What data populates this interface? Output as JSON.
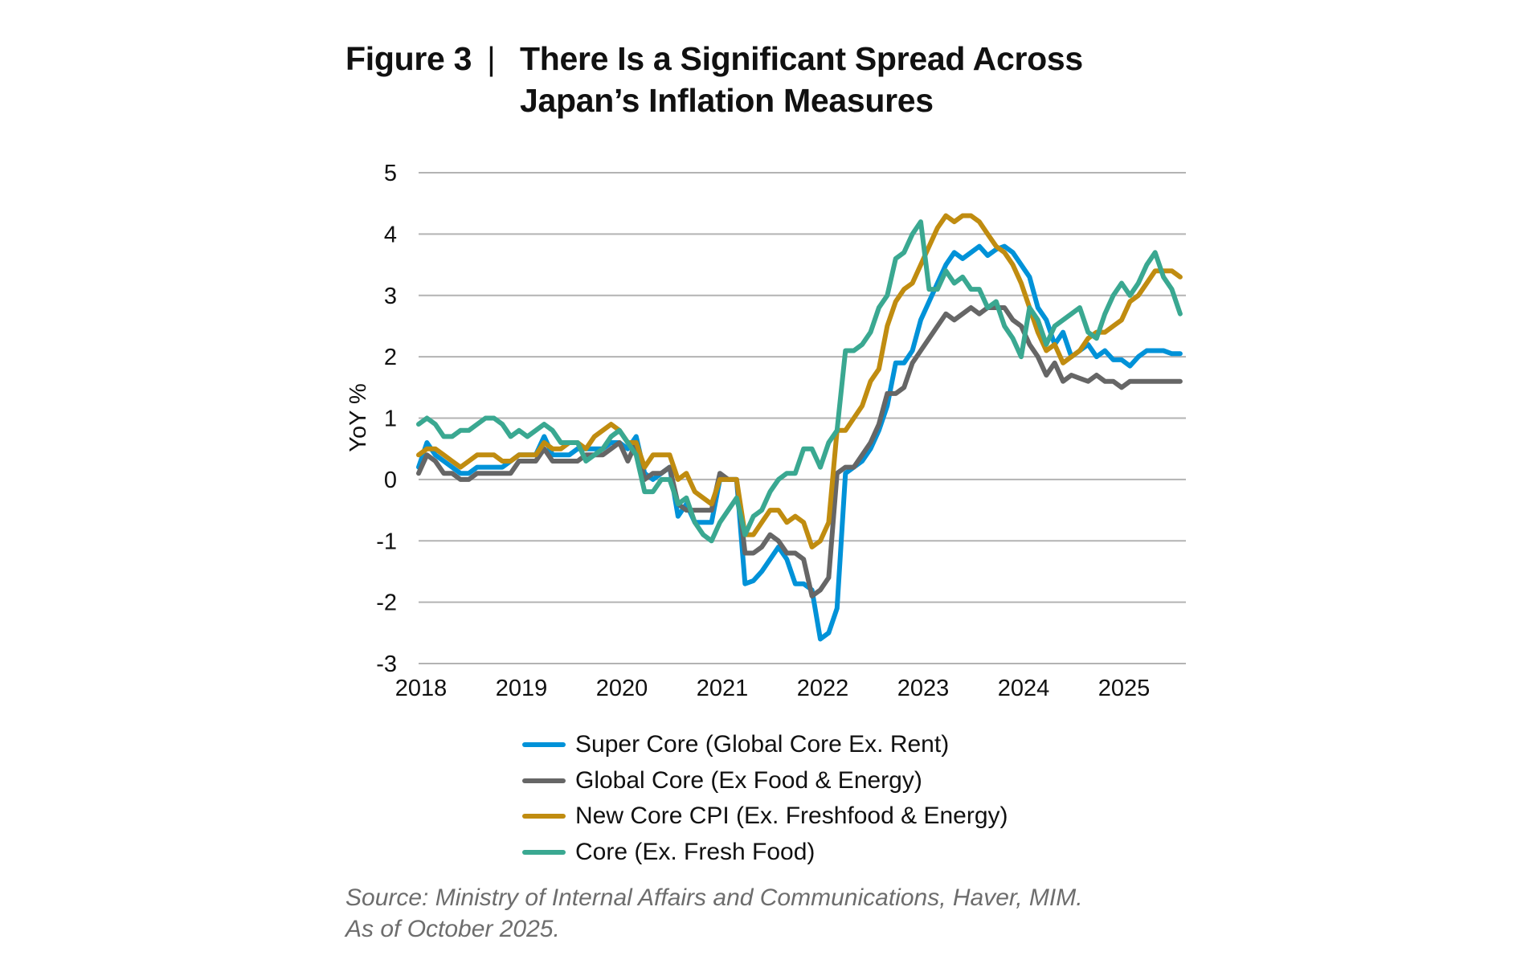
{
  "title": {
    "figure_label": "Figure 3",
    "separator": "|",
    "line1": "There Is a Significant Spread Across",
    "line2": "Japan’s Inflation Measures"
  },
  "chart_data": {
    "type": "line",
    "title": "There Is a Significant Spread Across Japan’s Inflation Measures",
    "xlabel": "",
    "ylabel": "YoY %",
    "x_start": "2018-01",
    "x_frequency": "monthly",
    "x_tick_labels": [
      "2018",
      "2019",
      "2020",
      "2021",
      "2022",
      "2023",
      "2024",
      "2025"
    ],
    "ylim": [
      -3,
      5
    ],
    "y_ticks": [
      -3,
      -2,
      -1,
      0,
      1,
      2,
      3,
      4,
      5
    ],
    "y_tick_labels": [
      "-3",
      "-2",
      "-1",
      "0",
      "1",
      "2",
      "3",
      "4",
      "5"
    ],
    "grid": "horizontal",
    "legend_position": "bottom",
    "series": [
      {
        "name": "Super Core (Global Core Ex. Rent)",
        "color": "#0092d8",
        "values": [
          0.2,
          0.6,
          0.4,
          0.3,
          0.2,
          0.1,
          0.1,
          0.2,
          0.2,
          0.2,
          0.2,
          0.3,
          0.4,
          0.4,
          0.4,
          0.7,
          0.4,
          0.4,
          0.4,
          0.5,
          0.5,
          0.5,
          0.5,
          0.6,
          0.6,
          0.5,
          0.7,
          0.1,
          0.0,
          0.1,
          0.2,
          -0.6,
          -0.4,
          -0.7,
          -0.7,
          -0.7,
          0.0,
          0.0,
          0.0,
          -1.7,
          -1.65,
          -1.5,
          -1.3,
          -1.1,
          -1.3,
          -1.7,
          -1.7,
          -1.8,
          -2.6,
          -2.5,
          -2.1,
          0.1,
          0.2,
          0.3,
          0.5,
          0.8,
          1.2,
          1.9,
          1.9,
          2.1,
          2.6,
          2.9,
          3.2,
          3.5,
          3.7,
          3.6,
          3.7,
          3.8,
          3.65,
          3.75,
          3.8,
          3.7,
          3.5,
          3.3,
          2.8,
          2.6,
          2.2,
          2.4,
          2.0,
          2.1,
          2.2,
          2.0,
          2.1,
          1.95,
          1.95,
          1.85,
          2.0,
          2.1,
          2.1,
          2.1,
          2.05,
          2.05
        ]
      },
      {
        "name": "Global Core (Ex Food & Energy)",
        "color": "#666666",
        "values": [
          0.1,
          0.4,
          0.3,
          0.1,
          0.1,
          0.0,
          0.0,
          0.1,
          0.1,
          0.1,
          0.1,
          0.1,
          0.3,
          0.3,
          0.3,
          0.5,
          0.3,
          0.3,
          0.3,
          0.3,
          0.4,
          0.4,
          0.4,
          0.5,
          0.6,
          0.3,
          0.6,
          0.0,
          0.1,
          0.1,
          0.2,
          -0.4,
          -0.5,
          -0.5,
          -0.5,
          -0.5,
          0.1,
          0.0,
          0.0,
          -1.2,
          -1.2,
          -1.1,
          -0.9,
          -1.0,
          -1.2,
          -1.2,
          -1.3,
          -1.9,
          -1.8,
          -1.6,
          0.1,
          0.2,
          0.2,
          0.4,
          0.6,
          0.9,
          1.4,
          1.4,
          1.5,
          1.9,
          2.1,
          2.3,
          2.5,
          2.7,
          2.6,
          2.7,
          2.8,
          2.7,
          2.8,
          2.8,
          2.8,
          2.6,
          2.5,
          2.2,
          2.0,
          1.7,
          1.9,
          1.6,
          1.7,
          1.65,
          1.6,
          1.7,
          1.6,
          1.6,
          1.5,
          1.6,
          1.6,
          1.6,
          1.6,
          1.6,
          1.6,
          1.6
        ]
      },
      {
        "name": "New Core CPI (Ex. Freshfood & Energy)",
        "color": "#c08c10",
        "values": [
          0.4,
          0.5,
          0.5,
          0.4,
          0.3,
          0.2,
          0.3,
          0.4,
          0.4,
          0.4,
          0.3,
          0.3,
          0.4,
          0.4,
          0.4,
          0.6,
          0.5,
          0.5,
          0.6,
          0.6,
          0.5,
          0.7,
          0.8,
          0.9,
          0.8,
          0.6,
          0.6,
          0.2,
          0.4,
          0.4,
          0.4,
          0.0,
          0.1,
          -0.2,
          -0.3,
          -0.4,
          0.0,
          0.0,
          0.0,
          -0.9,
          -0.9,
          -0.7,
          -0.5,
          -0.5,
          -0.7,
          -0.6,
          -0.7,
          -1.1,
          -1.0,
          -0.7,
          0.8,
          0.8,
          1.0,
          1.2,
          1.6,
          1.8,
          2.5,
          2.9,
          3.1,
          3.2,
          3.5,
          3.8,
          4.1,
          4.3,
          4.2,
          4.3,
          4.3,
          4.2,
          4.0,
          3.8,
          3.7,
          3.5,
          3.2,
          2.8,
          2.4,
          2.1,
          2.2,
          1.9,
          2.0,
          2.1,
          2.3,
          2.4,
          2.4,
          2.5,
          2.6,
          2.9,
          3.0,
          3.2,
          3.4,
          3.4,
          3.4,
          3.3
        ]
      },
      {
        "name": "Core (Ex. Fresh Food)",
        "color": "#3aa891",
        "values": [
          0.9,
          1.0,
          0.9,
          0.7,
          0.7,
          0.8,
          0.8,
          0.9,
          1.0,
          1.0,
          0.9,
          0.7,
          0.8,
          0.7,
          0.8,
          0.9,
          0.8,
          0.6,
          0.6,
          0.6,
          0.3,
          0.4,
          0.5,
          0.7,
          0.8,
          0.6,
          0.4,
          -0.2,
          -0.2,
          0.0,
          0.0,
          -0.4,
          -0.3,
          -0.7,
          -0.9,
          -1.0,
          -0.7,
          -0.5,
          -0.3,
          -0.9,
          -0.6,
          -0.5,
          -0.2,
          0.0,
          0.1,
          0.1,
          0.5,
          0.5,
          0.2,
          0.6,
          0.8,
          2.1,
          2.1,
          2.2,
          2.4,
          2.8,
          3.0,
          3.6,
          3.7,
          4.0,
          4.2,
          3.1,
          3.1,
          3.4,
          3.2,
          3.3,
          3.1,
          3.1,
          2.8,
          2.9,
          2.5,
          2.3,
          2.0,
          2.8,
          2.6,
          2.2,
          2.5,
          2.6,
          2.7,
          2.8,
          2.4,
          2.3,
          2.7,
          3.0,
          3.2,
          3.0,
          3.2,
          3.5,
          3.7,
          3.3,
          3.1,
          2.7
        ]
      }
    ]
  },
  "source": {
    "line1": "Source: Ministry of Internal Affairs and Communications, Haver, MIM.",
    "line2": "As of October 2025."
  }
}
